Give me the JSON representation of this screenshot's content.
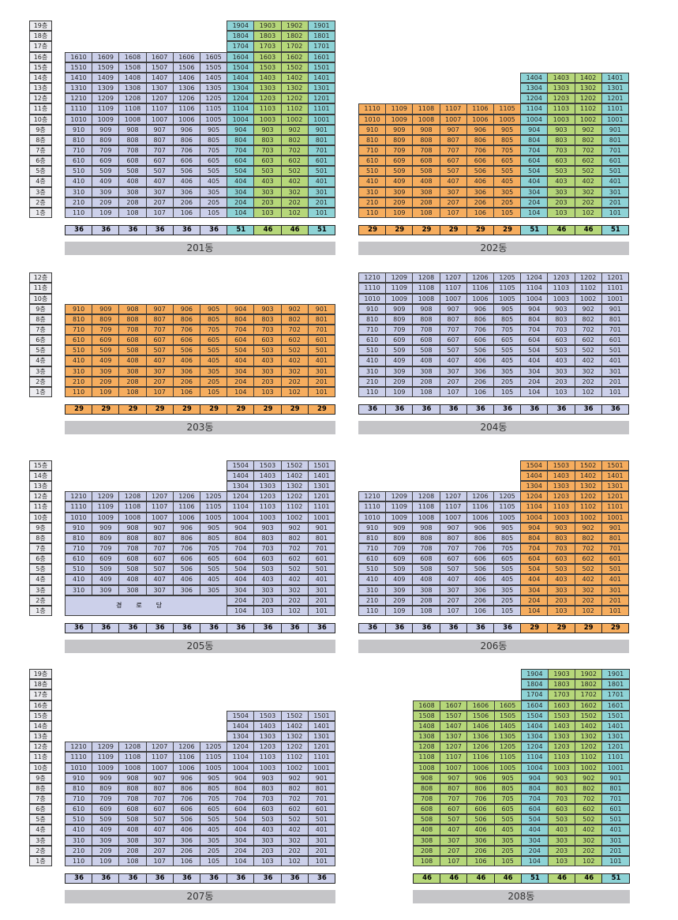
{
  "colors": {
    "purple": "#ccd0ea",
    "cyan": "#8ed3d6",
    "green": "#b6d77a",
    "orange": "#f6ad5e",
    "floor": "#ececf0"
  },
  "buildings": [
    {
      "name": "201동",
      "floor_labels": [
        "19층",
        "18층",
        "17층",
        "16층",
        "15층",
        "14층",
        "13층",
        "12층",
        "11층",
        "10층",
        "9층",
        "8층",
        "7층",
        "6층",
        "5층",
        "4층",
        "3층",
        "2층",
        "1층"
      ],
      "columns": [
        {
          "line": "10",
          "color": "purple",
          "area": "36",
          "floors": [
            1,
            16
          ]
        },
        {
          "line": "09",
          "color": "purple",
          "area": "36",
          "floors": [
            1,
            16
          ]
        },
        {
          "line": "08",
          "color": "purple",
          "area": "36",
          "floors": [
            1,
            16
          ]
        },
        {
          "line": "07",
          "color": "purple",
          "area": "36",
          "floors": [
            1,
            16
          ]
        },
        {
          "line": "06",
          "color": "purple",
          "area": "36",
          "floors": [
            1,
            16
          ]
        },
        {
          "line": "05",
          "color": "purple",
          "area": "36",
          "floors": [
            1,
            16
          ]
        },
        {
          "line": "04",
          "color": "cyan",
          "area": "51",
          "floors": [
            1,
            19
          ]
        },
        {
          "line": "03",
          "color": "green",
          "area": "46",
          "floors": [
            1,
            19
          ]
        },
        {
          "line": "02",
          "color": "green",
          "area": "46",
          "floors": [
            1,
            19
          ]
        },
        {
          "line": "01",
          "color": "cyan",
          "area": "51",
          "floors": [
            1,
            19
          ]
        }
      ]
    },
    {
      "name": "202동",
      "floor_labels": [],
      "columns": [
        {
          "line": "10",
          "color": "orange",
          "area": "29",
          "floors": [
            1,
            11
          ]
        },
        {
          "line": "09",
          "color": "orange",
          "area": "29",
          "floors": [
            1,
            11
          ]
        },
        {
          "line": "08",
          "color": "orange",
          "area": "29",
          "floors": [
            1,
            11
          ]
        },
        {
          "line": "07",
          "color": "orange",
          "area": "29",
          "floors": [
            1,
            11
          ]
        },
        {
          "line": "06",
          "color": "orange",
          "area": "29",
          "floors": [
            1,
            11
          ]
        },
        {
          "line": "05",
          "color": "orange",
          "area": "29",
          "floors": [
            1,
            11
          ]
        },
        {
          "line": "04",
          "color": "cyan",
          "area": "51",
          "floors": [
            1,
            14
          ]
        },
        {
          "line": "03",
          "color": "green",
          "area": "46",
          "floors": [
            1,
            14
          ]
        },
        {
          "line": "02",
          "color": "green",
          "area": "46",
          "floors": [
            1,
            14
          ]
        },
        {
          "line": "01",
          "color": "cyan",
          "area": "51",
          "floors": [
            1,
            14
          ]
        }
      ]
    },
    {
      "name": "203동",
      "floor_labels": [
        "12층",
        "11층",
        "10층",
        "9층",
        "8층",
        "7층",
        "6층",
        "5층",
        "4층",
        "3층",
        "2층",
        "1층"
      ],
      "columns": [
        {
          "line": "10",
          "color": "orange",
          "area": "29",
          "floors": [
            1,
            9
          ]
        },
        {
          "line": "09",
          "color": "orange",
          "area": "29",
          "floors": [
            1,
            9
          ]
        },
        {
          "line": "08",
          "color": "orange",
          "area": "29",
          "floors": [
            1,
            9
          ]
        },
        {
          "line": "07",
          "color": "orange",
          "area": "29",
          "floors": [
            1,
            9
          ]
        },
        {
          "line": "06",
          "color": "orange",
          "area": "29",
          "floors": [
            1,
            9
          ]
        },
        {
          "line": "05",
          "color": "orange",
          "area": "29",
          "floors": [
            1,
            9
          ]
        },
        {
          "line": "04",
          "color": "orange",
          "area": "29",
          "floors": [
            1,
            9
          ]
        },
        {
          "line": "03",
          "color": "orange",
          "area": "29",
          "floors": [
            1,
            9
          ]
        },
        {
          "line": "02",
          "color": "orange",
          "area": "29",
          "floors": [
            1,
            9
          ]
        },
        {
          "line": "01",
          "color": "orange",
          "area": "29",
          "floors": [
            1,
            9
          ]
        }
      ]
    },
    {
      "name": "204동",
      "floor_labels": [],
      "columns": [
        {
          "line": "10",
          "color": "purple",
          "area": "36",
          "floors": [
            1,
            12
          ]
        },
        {
          "line": "09",
          "color": "purple",
          "area": "36",
          "floors": [
            1,
            12
          ]
        },
        {
          "line": "08",
          "color": "purple",
          "area": "36",
          "floors": [
            1,
            12
          ]
        },
        {
          "line": "07",
          "color": "purple",
          "area": "36",
          "floors": [
            1,
            12
          ]
        },
        {
          "line": "06",
          "color": "purple",
          "area": "36",
          "floors": [
            1,
            12
          ]
        },
        {
          "line": "05",
          "color": "purple",
          "area": "36",
          "floors": [
            1,
            12
          ]
        },
        {
          "line": "04",
          "color": "purple",
          "area": "36",
          "floors": [
            1,
            12
          ]
        },
        {
          "line": "03",
          "color": "purple",
          "area": "36",
          "floors": [
            1,
            12
          ]
        },
        {
          "line": "02",
          "color": "purple",
          "area": "36",
          "floors": [
            1,
            12
          ]
        },
        {
          "line": "01",
          "color": "purple",
          "area": "36",
          "floors": [
            1,
            12
          ]
        }
      ]
    },
    {
      "name": "205동",
      "floor_labels": [
        "15층",
        "14층",
        "13층",
        "12층",
        "11층",
        "10층",
        "9층",
        "8층",
        "7층",
        "6층",
        "5층",
        "4층",
        "3층",
        "2층",
        "1층"
      ],
      "merged_label": "경로당",
      "columns": [
        {
          "line": "10",
          "color": "purple",
          "area": "36",
          "floors": [
            3,
            12
          ]
        },
        {
          "line": "09",
          "color": "purple",
          "area": "36",
          "floors": [
            3,
            12
          ]
        },
        {
          "line": "08",
          "color": "purple",
          "area": "36",
          "floors": [
            3,
            12
          ]
        },
        {
          "line": "07",
          "color": "purple",
          "area": "36",
          "floors": [
            3,
            12
          ]
        },
        {
          "line": "06",
          "color": "purple",
          "area": "36",
          "floors": [
            3,
            12
          ]
        },
        {
          "line": "05",
          "color": "purple",
          "area": "36",
          "floors": [
            3,
            12
          ]
        },
        {
          "line": "04",
          "color": "purple",
          "area": "36",
          "floors": [
            1,
            15
          ]
        },
        {
          "line": "03",
          "color": "purple",
          "area": "36",
          "floors": [
            1,
            15
          ]
        },
        {
          "line": "02",
          "color": "purple",
          "area": "36",
          "floors": [
            1,
            15
          ]
        },
        {
          "line": "01",
          "color": "purple",
          "area": "36",
          "floors": [
            1,
            15
          ]
        }
      ]
    },
    {
      "name": "206동",
      "floor_labels": [],
      "columns": [
        {
          "line": "10",
          "color": "purple",
          "area": "36",
          "floors": [
            1,
            12
          ]
        },
        {
          "line": "09",
          "color": "purple",
          "area": "36",
          "floors": [
            1,
            12
          ]
        },
        {
          "line": "08",
          "color": "purple",
          "area": "36",
          "floors": [
            1,
            12
          ]
        },
        {
          "line": "07",
          "color": "purple",
          "area": "36",
          "floors": [
            1,
            12
          ]
        },
        {
          "line": "06",
          "color": "purple",
          "area": "36",
          "floors": [
            1,
            12
          ]
        },
        {
          "line": "05",
          "color": "purple",
          "area": "36",
          "floors": [
            1,
            12
          ]
        },
        {
          "line": "04",
          "color": "orange",
          "area": "29",
          "floors": [
            1,
            15
          ]
        },
        {
          "line": "03",
          "color": "orange",
          "area": "29",
          "floors": [
            1,
            15
          ]
        },
        {
          "line": "02",
          "color": "orange",
          "area": "29",
          "floors": [
            1,
            15
          ]
        },
        {
          "line": "01",
          "color": "orange",
          "area": "29",
          "floors": [
            1,
            15
          ]
        }
      ]
    },
    {
      "name": "207동",
      "floor_labels": [
        "19층",
        "18층",
        "17층",
        "16층",
        "15층",
        "14층",
        "13층",
        "12층",
        "11층",
        "10층",
        "9층",
        "8층",
        "7층",
        "6층",
        "5층",
        "4층",
        "3층",
        "2층",
        "1층"
      ],
      "columns": [
        {
          "line": "10",
          "color": "purple",
          "area": "36",
          "floors": [
            1,
            12
          ]
        },
        {
          "line": "09",
          "color": "purple",
          "area": "36",
          "floors": [
            1,
            12
          ]
        },
        {
          "line": "08",
          "color": "purple",
          "area": "36",
          "floors": [
            1,
            12
          ]
        },
        {
          "line": "07",
          "color": "purple",
          "area": "36",
          "floors": [
            1,
            12
          ]
        },
        {
          "line": "06",
          "color": "purple",
          "area": "36",
          "floors": [
            1,
            12
          ]
        },
        {
          "line": "05",
          "color": "purple",
          "area": "36",
          "floors": [
            1,
            12
          ]
        },
        {
          "line": "04",
          "color": "purple",
          "area": "36",
          "floors": [
            1,
            15
          ]
        },
        {
          "line": "03",
          "color": "purple",
          "area": "36",
          "floors": [
            1,
            15
          ]
        },
        {
          "line": "02",
          "color": "purple",
          "area": "36",
          "floors": [
            1,
            15
          ]
        },
        {
          "line": "01",
          "color": "purple",
          "area": "36",
          "floors": [
            1,
            15
          ]
        }
      ]
    },
    {
      "name": "208동",
      "floor_labels": [],
      "columns": [
        {
          "line": "08",
          "color": "green",
          "area": "46",
          "floors": [
            1,
            16
          ]
        },
        {
          "line": "07",
          "color": "green",
          "area": "46",
          "floors": [
            1,
            16
          ]
        },
        {
          "line": "06",
          "color": "green",
          "area": "46",
          "floors": [
            1,
            16
          ]
        },
        {
          "line": "05",
          "color": "green",
          "area": "46",
          "floors": [
            1,
            16
          ]
        },
        {
          "line": "04",
          "color": "cyan",
          "area": "51",
          "floors": [
            1,
            19
          ]
        },
        {
          "line": "03",
          "color": "green",
          "area": "46",
          "floors": [
            1,
            19
          ]
        },
        {
          "line": "02",
          "color": "green",
          "area": "46",
          "floors": [
            1,
            19
          ]
        },
        {
          "line": "01",
          "color": "cyan",
          "area": "51",
          "floors": [
            1,
            19
          ]
        }
      ]
    }
  ]
}
